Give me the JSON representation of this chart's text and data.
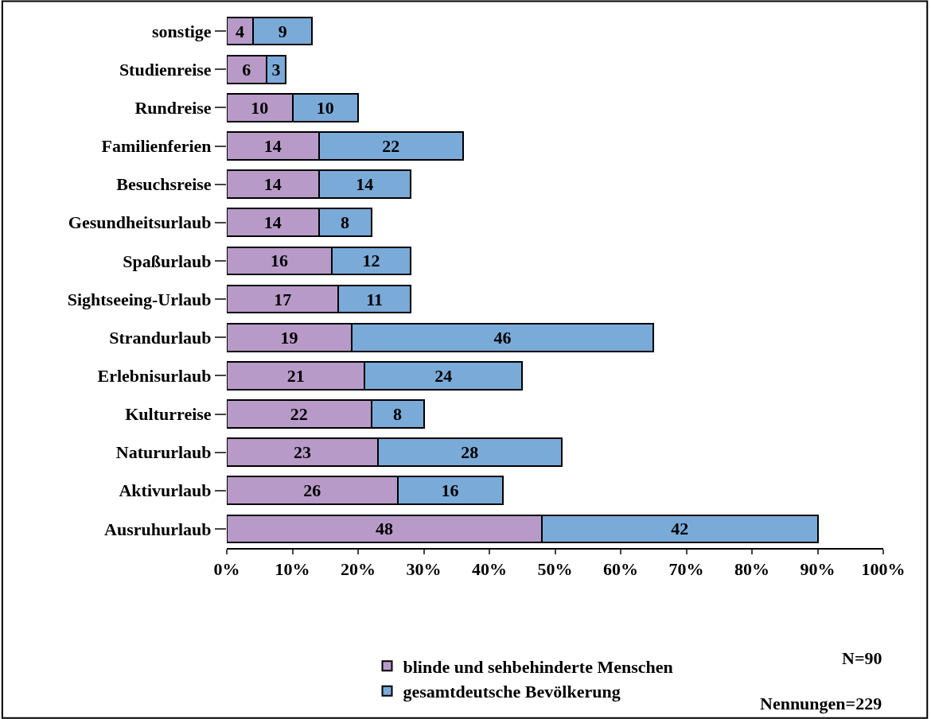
{
  "chart_data": {
    "type": "bar",
    "orientation": "horizontal",
    "stacked": true,
    "data_labels": true,
    "legend": "bottom left",
    "categories": [
      "sonstige",
      "Studienreise",
      "Rundreise",
      "Familienferien",
      "Besuchsreise",
      "Gesundheitsurlaub",
      "Spaßurlaub",
      "Sightseeing-Urlaub",
      "Strandurlaub",
      "Erlebnisurlaub",
      "Kulturreise",
      "Natururlaub",
      "Aktivurlaub",
      "Ausruhurlaub"
    ],
    "series": [
      {
        "name": "blinde und sehbehinderte Menschen",
        "color": "#b89ac8",
        "values": [
          4,
          6,
          10,
          14,
          14,
          14,
          16,
          17,
          19,
          21,
          22,
          23,
          26,
          48
        ]
      },
      {
        "name": "gesamtdeutsche Bevölkerung",
        "color": "#7aaad8",
        "values": [
          9,
          3,
          10,
          22,
          14,
          8,
          12,
          11,
          46,
          24,
          8,
          28,
          16,
          42
        ]
      }
    ],
    "xlim": [
      0,
      100
    ],
    "xticks": [
      {
        "value": 0,
        "label": "0%"
      },
      {
        "value": 10,
        "label": "10%"
      },
      {
        "value": 20,
        "label": "20%"
      },
      {
        "value": 30,
        "label": "30%"
      },
      {
        "value": 40,
        "label": "40%"
      },
      {
        "value": 50,
        "label": "50%"
      },
      {
        "value": 60,
        "label": "60%"
      },
      {
        "value": 70,
        "label": "70%"
      },
      {
        "value": 80,
        "label": "80%"
      },
      {
        "value": 90,
        "label": "90%"
      },
      {
        "value": 100,
        "label": "100%"
      }
    ],
    "annotations": [
      "N=90",
      "Nennungen=229"
    ]
  }
}
